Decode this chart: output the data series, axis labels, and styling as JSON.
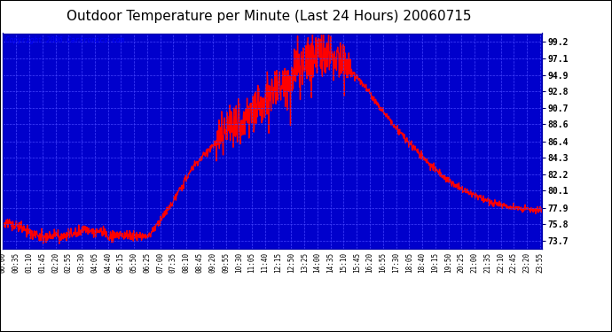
{
  "title": "Outdoor Temperature per Minute (Last 24 Hours) 20060715",
  "copyright_text": "Copyright 2006 Cartronics.com",
  "background_color": "#0000CC",
  "line_color": "#FF0000",
  "line_width": 1.0,
  "grid_color": "#4444FF",
  "yticks": [
    73.7,
    75.8,
    77.9,
    80.1,
    82.2,
    84.3,
    86.4,
    88.6,
    90.7,
    92.8,
    94.9,
    97.1,
    99.2
  ],
  "ylim": [
    72.6,
    100.3
  ],
  "title_fontsize": 11,
  "tick_fontsize": 7,
  "fig_bg": "#FFFFFF"
}
